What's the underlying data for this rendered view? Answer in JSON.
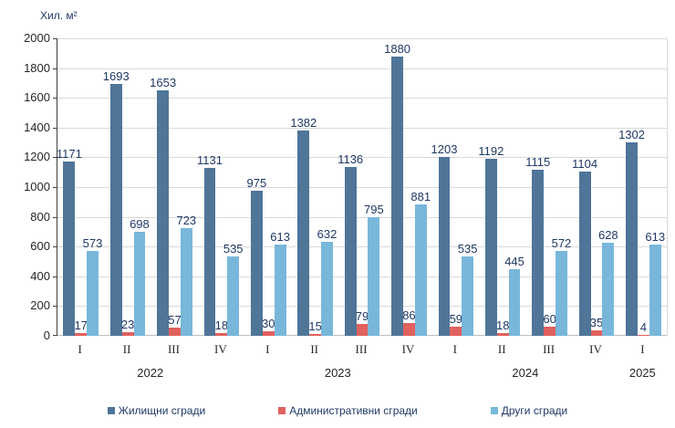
{
  "chart_data": {
    "type": "bar",
    "title": "",
    "y_axis_title": "Хил. м²",
    "ylim": [
      0,
      2000
    ],
    "ytick_step": 200,
    "ytick_labels": [
      "0",
      "200",
      "400",
      "600",
      "800",
      "1000",
      "1200",
      "1400",
      "1600",
      "1800",
      "2000"
    ],
    "grid": true,
    "legend_position": "bottom",
    "categories": [
      "I",
      "II",
      "III",
      "IV",
      "I",
      "II",
      "III",
      "IV",
      "I",
      "II",
      "III",
      "IV",
      "I"
    ],
    "year_groups": [
      {
        "label": "2022",
        "start": 0,
        "count": 4
      },
      {
        "label": "2023",
        "start": 4,
        "count": 4
      },
      {
        "label": "2024",
        "start": 8,
        "count": 4
      },
      {
        "label": "2025",
        "start": 12,
        "count": 1
      }
    ],
    "series": [
      {
        "key": "residential",
        "name": "Жилищни сгради",
        "color": "#4F7598",
        "values": [
          1171,
          1693,
          1653,
          1131,
          975,
          1382,
          1136,
          1880,
          1203,
          1192,
          1115,
          1104,
          1302
        ]
      },
      {
        "key": "administrative",
        "name": "Административни сгради",
        "color": "#E0615D",
        "values": [
          17,
          23,
          57,
          18,
          30,
          15,
          79,
          86,
          59,
          18,
          60,
          35,
          4
        ]
      },
      {
        "key": "other",
        "name": "Други сгради",
        "color": "#78B7DA",
        "values": [
          573,
          698,
          723,
          535,
          613,
          632,
          795,
          881,
          535,
          445,
          572,
          628,
          613
        ]
      }
    ]
  },
  "colors": {
    "gridline": "#D9D9D9",
    "baseline": "#BFBFBF",
    "axis_line": "#404040",
    "tick_label": "#262626",
    "data_label": "#1F3864",
    "legend_text": "#1F3864",
    "background": "#FFFFFF"
  }
}
